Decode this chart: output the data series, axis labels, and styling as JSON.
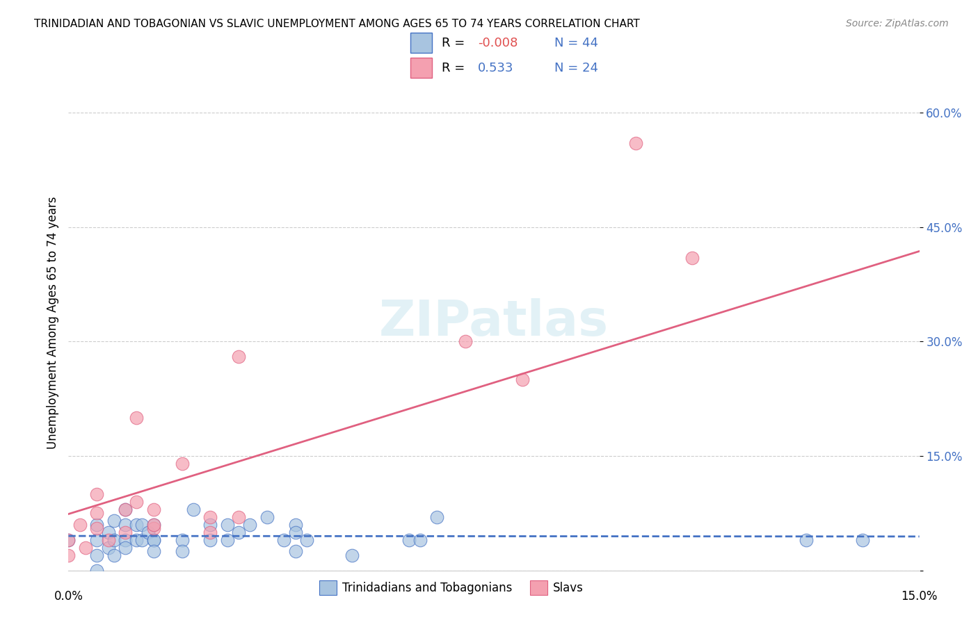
{
  "title": "TRINIDADIAN AND TOBAGONIAN VS SLAVIC UNEMPLOYMENT AMONG AGES 65 TO 74 YEARS CORRELATION CHART",
  "source": "Source: ZipAtlas.com",
  "ylabel": "Unemployment Among Ages 65 to 74 years",
  "xlim": [
    0.0,
    0.15
  ],
  "ylim": [
    0.0,
    0.65
  ],
  "ytick_values": [
    0.0,
    0.15,
    0.3,
    0.45,
    0.6
  ],
  "color_blue": "#a8c4e0",
  "color_pink": "#f4a0b0",
  "line_blue": "#4472c4",
  "line_pink": "#e06080",
  "trinidadian_x": [
    0.0,
    0.005,
    0.005,
    0.005,
    0.005,
    0.007,
    0.007,
    0.008,
    0.008,
    0.008,
    0.01,
    0.01,
    0.01,
    0.01,
    0.012,
    0.012,
    0.013,
    0.013,
    0.014,
    0.015,
    0.015,
    0.015,
    0.015,
    0.02,
    0.02,
    0.022,
    0.025,
    0.025,
    0.028,
    0.028,
    0.03,
    0.032,
    0.035,
    0.038,
    0.04,
    0.04,
    0.04,
    0.042,
    0.05,
    0.06,
    0.062,
    0.065,
    0.13,
    0.14
  ],
  "trinidadian_y": [
    0.04,
    0.02,
    0.04,
    0.06,
    0.0,
    0.03,
    0.05,
    0.04,
    0.02,
    0.065,
    0.04,
    0.06,
    0.08,
    0.03,
    0.04,
    0.06,
    0.04,
    0.06,
    0.05,
    0.04,
    0.06,
    0.04,
    0.025,
    0.04,
    0.025,
    0.08,
    0.06,
    0.04,
    0.06,
    0.04,
    0.05,
    0.06,
    0.07,
    0.04,
    0.06,
    0.05,
    0.025,
    0.04,
    0.02,
    0.04,
    0.04,
    0.07,
    0.04,
    0.04
  ],
  "slavic_x": [
    0.0,
    0.0,
    0.002,
    0.003,
    0.005,
    0.005,
    0.005,
    0.007,
    0.01,
    0.01,
    0.012,
    0.012,
    0.015,
    0.015,
    0.015,
    0.02,
    0.025,
    0.025,
    0.03,
    0.03,
    0.07,
    0.08,
    0.1,
    0.11
  ],
  "slavic_y": [
    0.04,
    0.02,
    0.06,
    0.03,
    0.055,
    0.075,
    0.1,
    0.04,
    0.08,
    0.05,
    0.09,
    0.2,
    0.055,
    0.06,
    0.08,
    0.14,
    0.05,
    0.07,
    0.28,
    0.07,
    0.3,
    0.25,
    0.56,
    0.41
  ]
}
